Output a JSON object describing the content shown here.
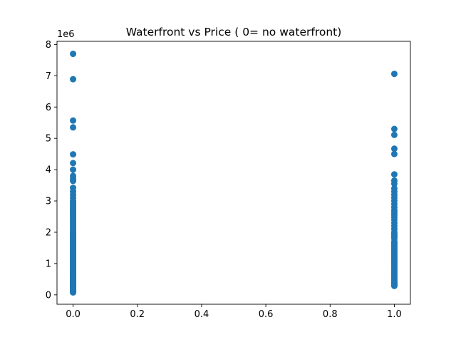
{
  "chart_data": {
    "type": "scatter",
    "title": "Waterfront vs Price ( 0= no waterfront)",
    "xlabel": "",
    "ylabel": "",
    "y_offset_label": "1e6",
    "xlim": [
      -0.05,
      1.05
    ],
    "ylim": [
      -300000,
      8100000
    ],
    "x_ticks": [
      0.0,
      0.2,
      0.4,
      0.6,
      0.8,
      1.0
    ],
    "x_tick_labels": [
      "0.0",
      "0.2",
      "0.4",
      "0.6",
      "0.8",
      "1.0"
    ],
    "y_ticks": [
      0,
      1000000,
      2000000,
      3000000,
      4000000,
      5000000,
      6000000,
      7000000,
      8000000
    ],
    "y_tick_labels": [
      "0",
      "1",
      "2",
      "3",
      "4",
      "5",
      "6",
      "7",
      "8"
    ],
    "grid": false,
    "legend": "none",
    "marker_color": "#1f77b4",
    "series": [
      {
        "x": [
          0,
          0,
          0,
          0,
          0,
          0,
          0,
          0,
          0,
          0,
          0,
          0,
          0,
          0,
          0,
          0,
          0,
          0,
          0,
          0,
          0,
          0,
          0,
          0,
          0,
          0,
          0,
          0,
          0,
          0,
          0,
          0,
          0,
          0,
          0,
          0,
          0,
          0,
          0,
          0,
          0,
          0,
          0,
          0,
          0,
          0,
          0,
          0,
          0,
          0,
          0,
          0,
          0,
          0,
          0,
          0,
          0,
          0,
          0,
          0,
          0,
          0,
          0,
          0,
          0,
          0,
          0,
          0,
          0,
          0,
          0,
          0,
          0,
          0,
          0,
          0,
          0,
          0,
          0,
          0,
          0,
          0,
          0,
          0,
          0,
          0,
          0,
          0,
          0,
          0,
          0,
          0,
          0,
          0,
          0,
          0,
          0,
          0,
          0,
          0,
          0,
          0,
          0,
          0,
          0,
          0,
          0,
          0,
          0,
          0,
          0,
          0,
          0,
          0,
          0,
          0,
          0,
          0,
          0,
          0,
          1,
          1,
          1,
          1,
          1,
          1,
          1,
          1,
          1,
          1,
          1,
          1,
          1,
          1,
          1,
          1,
          1,
          1,
          1,
          1,
          1,
          1,
          1,
          1,
          1,
          1,
          1,
          1,
          1,
          1,
          1,
          1,
          1,
          1,
          1,
          1,
          1,
          1,
          1,
          1,
          1,
          1,
          1,
          1,
          1,
          1,
          1,
          1,
          1,
          1,
          1,
          1,
          1,
          1,
          1,
          1,
          1,
          1,
          1,
          1
        ],
        "y": [
          7700000,
          6890000,
          5570000,
          5350000,
          4490000,
          4210000,
          4000000,
          3800000,
          3710000,
          3640000,
          3420000,
          3300000,
          3200000,
          3100000,
          3000000,
          2950000,
          2900000,
          2850000,
          2800000,
          2750000,
          2700000,
          2650000,
          2600000,
          2550000,
          2500000,
          2450000,
          2400000,
          2350000,
          2300000,
          2250000,
          2200000,
          2150000,
          2100000,
          2050000,
          2000000,
          1970000,
          1940000,
          1910000,
          1880000,
          1850000,
          1820000,
          1790000,
          1760000,
          1730000,
          1700000,
          1670000,
          1640000,
          1610000,
          1580000,
          1550000,
          1520000,
          1490000,
          1460000,
          1430000,
          1400000,
          1370000,
          1340000,
          1310000,
          1280000,
          1250000,
          1220000,
          1190000,
          1160000,
          1130000,
          1100000,
          1070000,
          1040000,
          1010000,
          980000,
          950000,
          920000,
          890000,
          860000,
          830000,
          800000,
          770000,
          740000,
          710000,
          680000,
          650000,
          620000,
          590000,
          560000,
          530000,
          500000,
          470000,
          440000,
          410000,
          380000,
          350000,
          320000,
          290000,
          260000,
          230000,
          200000,
          180000,
          160000,
          140000,
          120000,
          100000,
          85000,
          78000,
          95000,
          110000,
          130000,
          150000,
          170000,
          190000,
          210000,
          240000,
          270000,
          300000,
          330000,
          360000,
          390000,
          420000,
          450000,
          480000,
          510000,
          540000,
          7060000,
          5300000,
          5110000,
          4670000,
          4500000,
          3850000,
          3650000,
          3550000,
          3400000,
          3300000,
          3200000,
          3100000,
          3000000,
          2900000,
          2800000,
          2700000,
          2620000,
          2550000,
          2480000,
          2400000,
          2300000,
          2200000,
          2100000,
          2000000,
          1950000,
          1900000,
          1850000,
          1800000,
          1700000,
          1650000,
          1600000,
          1550000,
          1500000,
          1450000,
          1400000,
          1350000,
          1300000,
          1250000,
          1200000,
          1150000,
          1100000,
          1050000,
          1000000,
          950000,
          900000,
          850000,
          800000,
          750000,
          700000,
          650000,
          600000,
          550000,
          500000,
          450000,
          400000,
          350000,
          300000,
          285000,
          330000,
          380000
        ]
      }
    ]
  }
}
